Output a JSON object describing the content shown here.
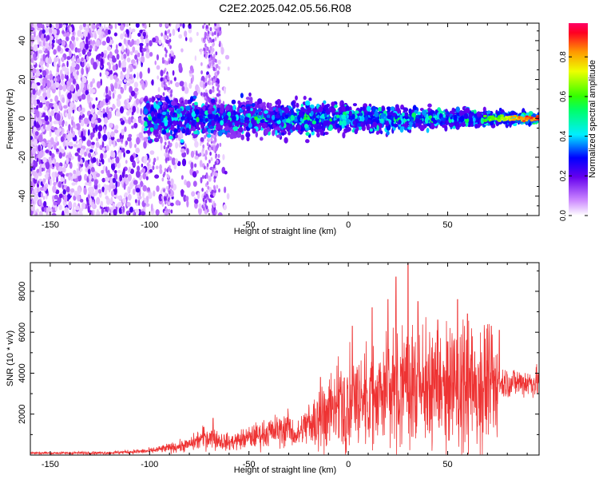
{
  "title": "C2E2.2025.042.05.56.R08",
  "colors": {
    "snr_line": "#ee3333",
    "axis": "#000000",
    "background": "#ffffff"
  },
  "chart_data": [
    {
      "type": "heatmap",
      "xlabel": "Height of straight line (km)",
      "ylabel": "Frequency (Hz)",
      "xlim": [
        -160,
        96
      ],
      "ylim": [
        -50,
        49
      ],
      "xticks": [
        -150,
        -100,
        -50,
        0,
        50
      ],
      "yticks": [
        -40,
        -20,
        0,
        20,
        40
      ],
      "colorbar": {
        "label": "Normalized spectral amplitude",
        "range": [
          0,
          0.97
        ],
        "ticks": [
          0.0,
          0.2,
          0.4,
          0.6,
          0.8
        ],
        "colormap": "white-violet-blue-cyan-green-yellow-orange-red"
      },
      "features": {
        "scattered_region_km": [
          -160,
          -60
        ],
        "vertical_streaks_km": [
          -91,
          -71,
          -67
        ],
        "band_region_km": [
          -102,
          96
        ],
        "band_halfwidth_hz_at_start": 10,
        "band_halfwidth_hz_at_end": 2,
        "peak_near_km": 85
      }
    },
    {
      "type": "line",
      "xlabel": "Height of straight line (km)",
      "ylabel": "SNR (10 * v/v)",
      "xlim": [
        -160,
        96
      ],
      "ylim": [
        0,
        9400
      ],
      "xticks": [
        -150,
        -100,
        -50,
        0,
        50
      ],
      "yticks": [
        2000,
        4000,
        6000,
        8000
      ],
      "envelope": {
        "x": [
          -160,
          -140,
          -120,
          -100,
          -90,
          -80,
          -72,
          -68,
          -60,
          -50,
          -40,
          -30,
          -26,
          -22,
          -15,
          -5,
          5,
          15,
          25,
          30,
          40,
          50,
          60,
          70,
          80,
          96
        ],
        "y": [
          100,
          100,
          110,
          200,
          350,
          500,
          900,
          800,
          600,
          850,
          1100,
          1300,
          900,
          1400,
          1900,
          2300,
          2700,
          3000,
          3300,
          3400,
          3350,
          3200,
          3350,
          3450,
          3550,
          3550
        ]
      },
      "peaks": [
        {
          "x": -68,
          "y": 1800
        },
        {
          "x": -30,
          "y": 1500
        },
        {
          "x": -14,
          "y": 3800
        },
        {
          "x": 2,
          "y": 6300
        },
        {
          "x": 12,
          "y": 7200
        },
        {
          "x": 20,
          "y": 7600
        },
        {
          "x": 24,
          "y": 8700
        },
        {
          "x": 30,
          "y": 9400
        },
        {
          "x": 35,
          "y": 7500
        },
        {
          "x": 45,
          "y": 6600
        },
        {
          "x": 55,
          "y": 7600
        },
        {
          "x": 60,
          "y": 6900
        },
        {
          "x": 72,
          "y": 6300
        },
        {
          "x": 76,
          "y": 6100
        }
      ]
    }
  ]
}
